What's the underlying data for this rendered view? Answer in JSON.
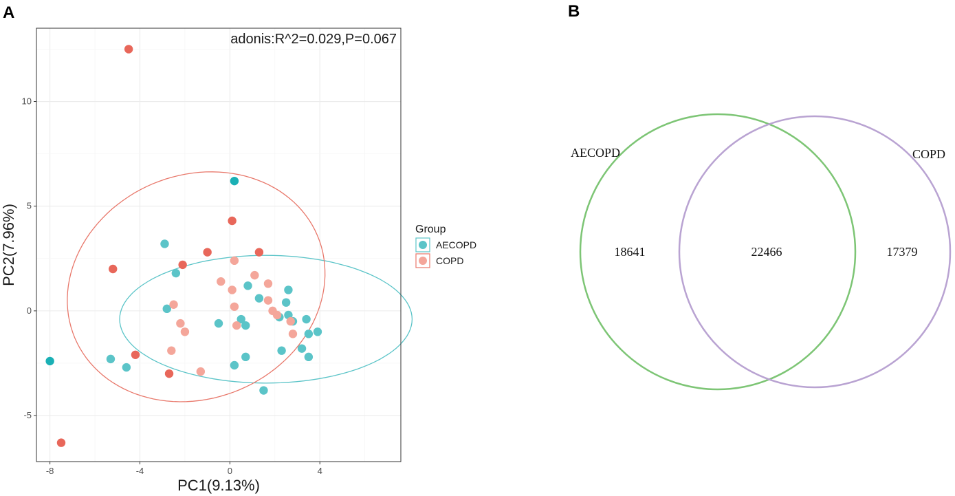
{
  "panels": {
    "a_label": "A",
    "b_label": "B"
  },
  "chart_data": [
    {
      "type": "scatter",
      "title": "",
      "annotation": "adonis:R^2=0.029,P=0.067",
      "xlabel": "PC1(9.13%)",
      "ylabel": "PC2(7.96%)",
      "xlim": [
        -8.6,
        7.6
      ],
      "ylim": [
        -7.2,
        13.5
      ],
      "xticks": [
        -8,
        -4,
        0,
        4
      ],
      "xtick_labels": [
        "-8",
        "-4",
        "0",
        "4"
      ],
      "yticks": [
        -5,
        0,
        5,
        10
      ],
      "ytick_labels": [
        "-5",
        "0",
        "5",
        "10"
      ],
      "grid": true,
      "legend": {
        "title": "Group",
        "position": "right"
      },
      "series": [
        {
          "name": "AECOPD",
          "color": "#5bc4c8",
          "outlier_color": "#1ab0b5",
          "points": [
            [
              0.2,
              6.2
            ],
            [
              -2.9,
              3.2
            ],
            [
              -2.4,
              1.8
            ],
            [
              -2.8,
              0.1
            ],
            [
              -0.5,
              -0.6
            ],
            [
              0.5,
              -0.4
            ],
            [
              0.7,
              -0.7
            ],
            [
              0.8,
              1.2
            ],
            [
              1.3,
              0.6
            ],
            [
              2.6,
              1.0
            ],
            [
              2.5,
              0.4
            ],
            [
              2.6,
              -0.2
            ],
            [
              2.8,
              -0.5
            ],
            [
              2.2,
              -0.3
            ],
            [
              3.4,
              -0.4
            ],
            [
              3.5,
              -1.1
            ],
            [
              3.9,
              -1.0
            ],
            [
              3.2,
              -1.8
            ],
            [
              3.5,
              -2.2
            ],
            [
              2.3,
              -1.9
            ],
            [
              0.7,
              -2.2
            ],
            [
              0.2,
              -2.6
            ],
            [
              1.5,
              -3.8
            ],
            [
              -4.6,
              -2.7
            ],
            [
              -5.3,
              -2.3
            ],
            [
              -8.0,
              -2.4
            ]
          ],
          "outliers": [
            [
              0.2,
              6.2
            ],
            [
              -8.0,
              -2.4
            ]
          ],
          "ellipse": {
            "center": [
              1.6,
              -0.4
            ],
            "semi_axes": [
              6.5,
              3.05
            ],
            "angle_deg": 0
          }
        },
        {
          "name": "COPD",
          "color": "#f4a69a",
          "outlier_color": "#e8675a",
          "points": [
            [
              -4.5,
              12.5
            ],
            [
              0.1,
              4.3
            ],
            [
              1.3,
              2.8
            ],
            [
              -1.0,
              2.8
            ],
            [
              -2.1,
              2.2
            ],
            [
              0.2,
              2.4
            ],
            [
              1.1,
              1.7
            ],
            [
              -0.4,
              1.4
            ],
            [
              1.7,
              1.3
            ],
            [
              0.1,
              1.0
            ],
            [
              1.7,
              0.5
            ],
            [
              -2.5,
              0.3
            ],
            [
              0.2,
              0.2
            ],
            [
              1.9,
              0.0
            ],
            [
              2.1,
              -0.2
            ],
            [
              2.7,
              -0.5
            ],
            [
              -2.2,
              -0.6
            ],
            [
              0.3,
              -0.7
            ],
            [
              -2.0,
              -1.0
            ],
            [
              2.8,
              -1.1
            ],
            [
              -2.6,
              -1.9
            ],
            [
              -4.2,
              -2.1
            ],
            [
              -1.3,
              -2.9
            ],
            [
              -2.7,
              -3.0
            ],
            [
              -5.2,
              2.0
            ],
            [
              -7.5,
              -6.3
            ]
          ],
          "outliers": [
            [
              -4.5,
              12.5
            ],
            [
              0.1,
              4.3
            ],
            [
              1.3,
              2.8
            ],
            [
              -1.0,
              2.8
            ],
            [
              -2.1,
              2.2
            ],
            [
              -5.2,
              2.0
            ],
            [
              -4.2,
              -2.1
            ],
            [
              -2.7,
              -3.0
            ],
            [
              -7.5,
              -6.3
            ]
          ],
          "ellipse": {
            "center": [
              -1.5,
              1.15
            ],
            "semi_axes": [
              5.95,
              5.25
            ],
            "angle_deg": 35
          }
        }
      ]
    },
    {
      "type": "venn",
      "sets": [
        {
          "name": "AECOPD",
          "color": "#7dc575"
        },
        {
          "name": "COPD",
          "color": "#b9a3d2"
        }
      ],
      "values": {
        "AECOPD_only": 18641,
        "intersection": 22466,
        "COPD_only": 17379
      },
      "value_labels": {
        "AECOPD_only": "18641",
        "intersection": "22466",
        "COPD_only": "17379"
      }
    }
  ]
}
